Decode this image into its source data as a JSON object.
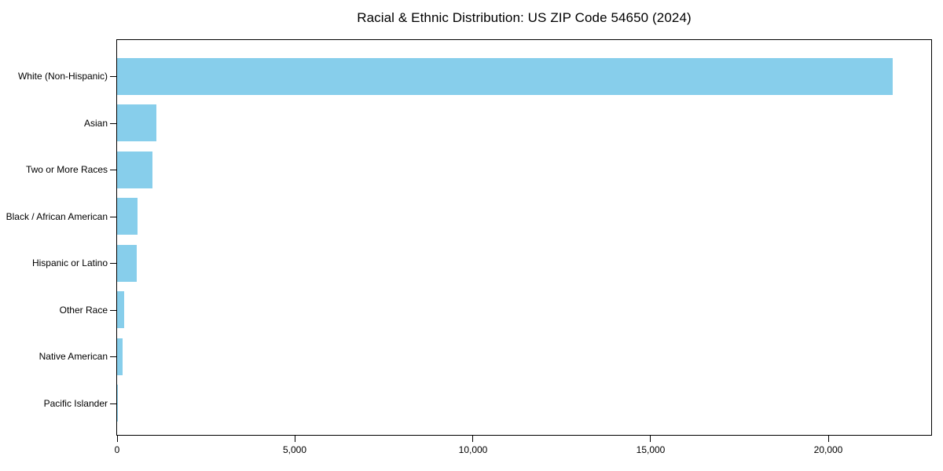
{
  "figure": {
    "title": "Racial & Ethnic Distribution: US ZIP Code 54650 (2024)"
  },
  "chart_data": {
    "type": "bar",
    "orientation": "horizontal",
    "title": "Racial & Ethnic Distribution: US ZIP Code 54650 (2024)",
    "categories": [
      "White (Non-Hispanic)",
      "Asian",
      "Two or More Races",
      "Black / African American",
      "Hispanic or Latino",
      "Other Race",
      "Native American",
      "Pacific Islander"
    ],
    "values": [
      21800,
      1100,
      990,
      570,
      560,
      200,
      150,
      10
    ],
    "xlabel": "",
    "ylabel": "",
    "xlim": [
      0,
      22890
    ],
    "xticks": [
      0,
      5000,
      10000,
      15000,
      20000
    ],
    "xtick_labels": [
      "0",
      "5,000",
      "10,000",
      "15,000",
      "20,000"
    ],
    "bar_color": "#87CEEB",
    "spine_color": "#000000",
    "background": "#FFFFFF",
    "grid": false,
    "legend": null
  }
}
